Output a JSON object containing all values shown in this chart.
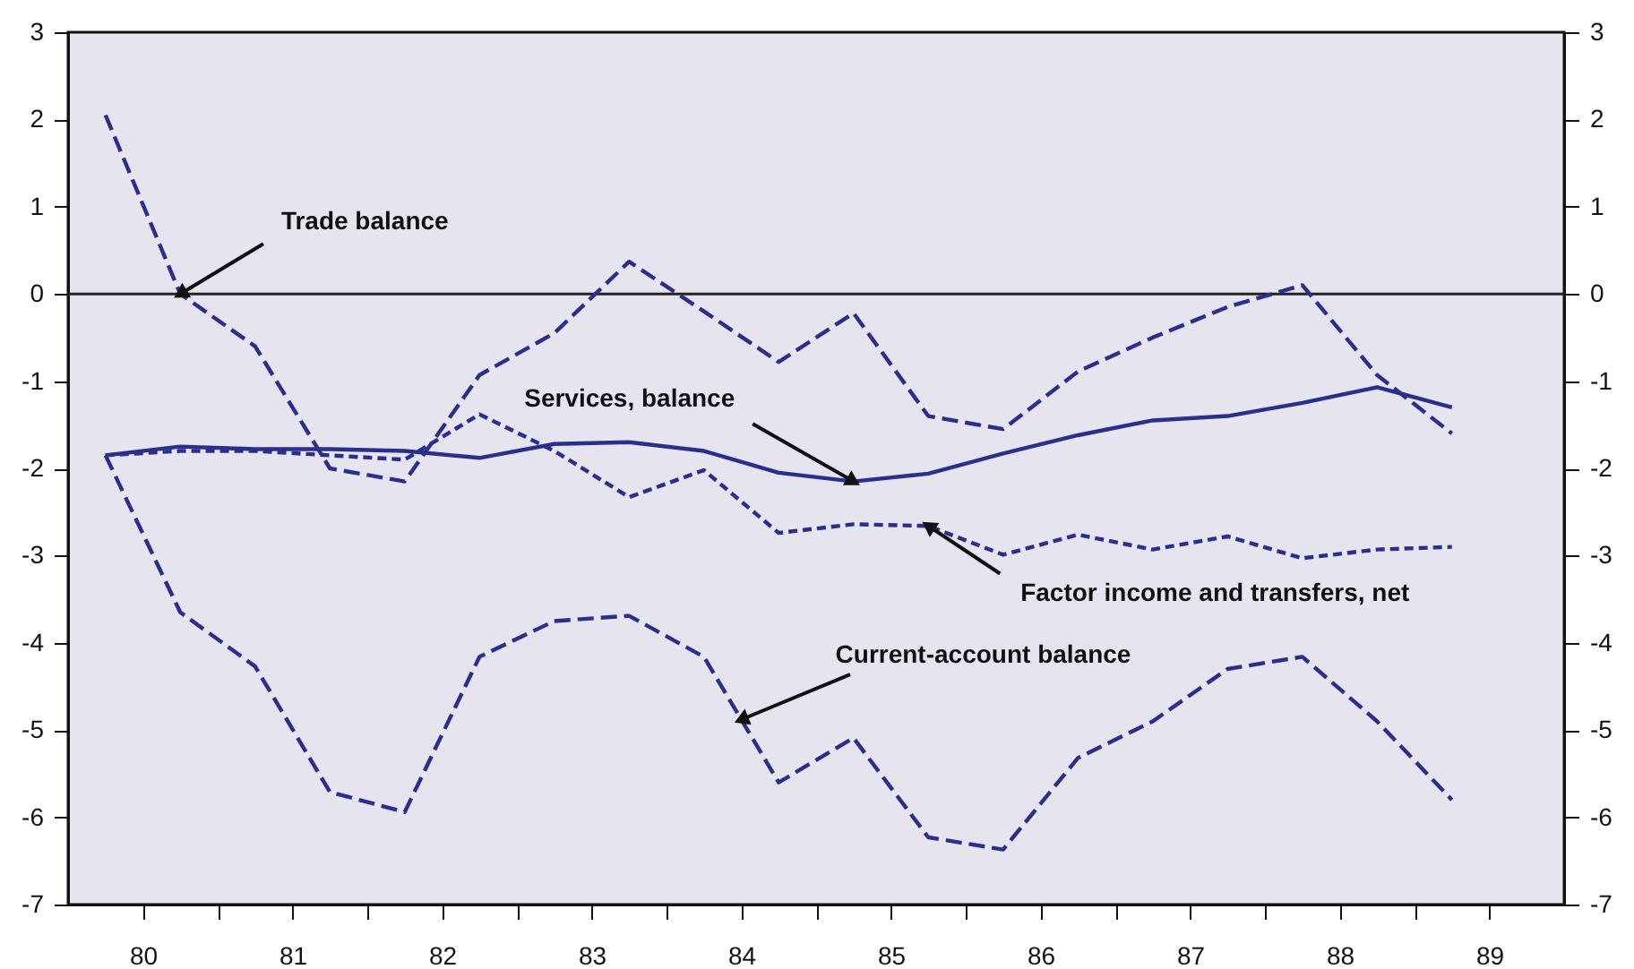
{
  "chart_data": {
    "type": "line",
    "x": [
      79.75,
      80.25,
      80.75,
      81.25,
      81.75,
      82.25,
      82.75,
      83.25,
      83.75,
      84.25,
      84.75,
      85.25,
      85.75,
      86.25,
      86.75,
      87.25,
      87.75,
      88.25,
      88.75
    ],
    "series": [
      {
        "name": "Trade balance",
        "color": "#2b2f8c",
        "line_style": "dashed",
        "values": [
          2.05,
          0,
          -0.6,
          -2.0,
          -2.15,
          -0.93,
          -0.45,
          0.37,
          -0.2,
          -0.78,
          -0.22,
          -1.4,
          -1.55,
          -0.89,
          -0.5,
          -0.15,
          0.1,
          -0.93,
          -1.6
        ]
      },
      {
        "name": "Services, balance",
        "color": "#2b2f8c",
        "line_style": "solid",
        "values": [
          -1.85,
          -1.75,
          -1.78,
          -1.78,
          -1.8,
          -1.88,
          -1.72,
          -1.7,
          -1.8,
          -2.05,
          -2.15,
          -2.06,
          -1.83,
          -1.62,
          -1.45,
          -1.4,
          -1.25,
          -1.07,
          -1.3
        ]
      },
      {
        "name": "Factor income and transfers, net",
        "color": "#2b2f8c",
        "line_style": "dotted",
        "values": [
          -1.85,
          -1.8,
          -1.8,
          -1.85,
          -1.9,
          -1.38,
          -1.8,
          -2.33,
          -2.02,
          -2.74,
          -2.64,
          -2.66,
          -2.99,
          -2.76,
          -2.93,
          -2.78,
          -3.03,
          -2.93,
          -2.9
        ]
      },
      {
        "name": "Current-account balance",
        "color": "#2b2f8c",
        "line_style": "dashed",
        "values": [
          -1.85,
          -3.65,
          -4.27,
          -5.71,
          -5.94,
          -4.16,
          -3.75,
          -3.69,
          -4.16,
          -5.6,
          -5.09,
          -6.23,
          -6.37,
          -5.32,
          -4.9,
          -4.3,
          -4.16,
          -4.9,
          -5.8
        ]
      }
    ],
    "xlim": [
      79.5,
      89.5
    ],
    "xticks": [
      80,
      {
        "value": 80.5,
        "label": null
      },
      81,
      {
        "value": 81.5,
        "label": null
      },
      82,
      {
        "value": 82.5,
        "label": null
      },
      83,
      {
        "value": 83.5,
        "label": null
      },
      84,
      {
        "value": 84.5,
        "label": null
      },
      85,
      {
        "value": 85.5,
        "label": null
      },
      86,
      {
        "value": 86.5,
        "label": null
      },
      87,
      {
        "value": 87.5,
        "label": null
      },
      88,
      {
        "value": 88.5,
        "label": null
      },
      89
    ],
    "ylim": [
      -7,
      3
    ],
    "yticks": [
      -7,
      -6,
      -5,
      -4,
      -3,
      -2,
      -1,
      0,
      1,
      2,
      3
    ],
    "y2lim": [
      -7,
      3
    ],
    "y2ticks": [
      -7,
      -6,
      -5,
      -4,
      -3,
      -2,
      -1,
      0,
      1,
      2,
      3
    ],
    "ref_lines": [
      {
        "axis": "y",
        "value": 0,
        "label": null,
        "color": "#222222"
      }
    ],
    "grid": false,
    "legend": false,
    "marker": "none"
  }
}
